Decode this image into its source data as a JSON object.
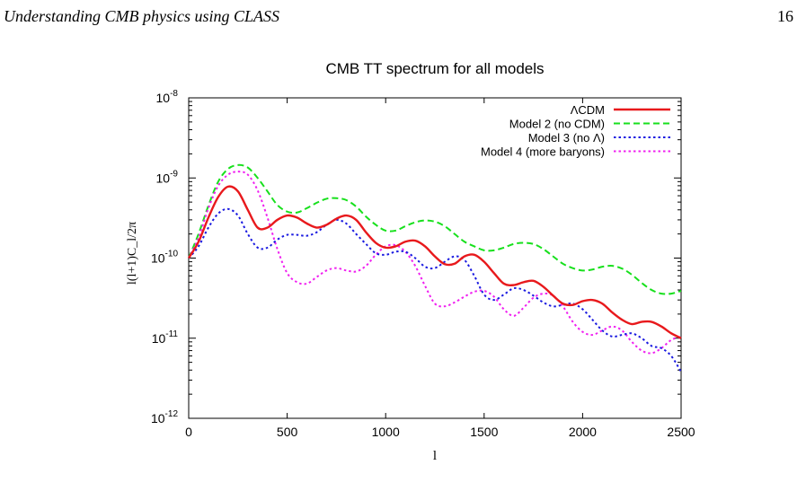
{
  "header": {
    "running_title": "Understanding CMB physics using CLASS",
    "page_number": "16"
  },
  "chart_data": {
    "type": "line",
    "title": "CMB TT spectrum for all models",
    "xlabel": "l",
    "ylabel": "l(l+1)C_l/2π",
    "xlim": [
      0,
      2500
    ],
    "ylim": [
      1e-12,
      1e-08
    ],
    "y_scale": "log",
    "grid": false,
    "legend_position": "top-right",
    "x_ticks": [
      "0",
      "500",
      "1000",
      "1500",
      "2000",
      "2500"
    ],
    "y_ticks": [
      {
        "base": "10",
        "exp": "-12",
        "value": 1e-12
      },
      {
        "base": "10",
        "exp": "-11",
        "value": 1e-11
      },
      {
        "base": "10",
        "exp": "-10",
        "value": 1e-10
      },
      {
        "base": "10",
        "exp": "-9",
        "value": 1e-09
      },
      {
        "base": "10",
        "exp": "-8",
        "value": 1e-08
      }
    ],
    "series": [
      {
        "name": "ΛCDM",
        "color": "#e8191c",
        "dash": "solid",
        "x": [
          0,
          50,
          100,
          150,
          200,
          250,
          300,
          350,
          400,
          450,
          500,
          550,
          600,
          650,
          700,
          750,
          800,
          850,
          900,
          950,
          1000,
          1050,
          1100,
          1150,
          1200,
          1250,
          1300,
          1350,
          1400,
          1450,
          1500,
          1550,
          1600,
          1650,
          1700,
          1750,
          1800,
          1850,
          1900,
          1950,
          2000,
          2050,
          2100,
          2150,
          2200,
          2250,
          2300,
          2350,
          2400,
          2450,
          2500
        ],
        "y": [
          1e-10,
          1.6e-10,
          3.2e-10,
          5.8e-10,
          7.8e-10,
          6.8e-10,
          4e-10,
          2.4e-10,
          2.4e-10,
          3e-10,
          3.4e-10,
          3.2e-10,
          2.7e-10,
          2.4e-10,
          2.6e-10,
          3.1e-10,
          3.4e-10,
          3e-10,
          2.1e-10,
          1.55e-10,
          1.35e-10,
          1.4e-10,
          1.6e-10,
          1.65e-10,
          1.4e-10,
          1.05e-10,
          8.4e-11,
          8.5e-11,
          1.05e-10,
          1.1e-10,
          9e-11,
          6.5e-11,
          4.8e-11,
          4.6e-11,
          5e-11,
          5.2e-11,
          4.4e-11,
          3.4e-11,
          2.7e-11,
          2.6e-11,
          2.9e-11,
          3e-11,
          2.7e-11,
          2.1e-11,
          1.7e-11,
          1.5e-11,
          1.6e-11,
          1.6e-11,
          1.4e-11,
          1.15e-11,
          1e-11
        ]
      },
      {
        "name": "Model 2 (no CDM)",
        "color": "#17e01c",
        "dash": "dashed",
        "x": [
          0,
          50,
          100,
          150,
          200,
          250,
          300,
          350,
          400,
          450,
          500,
          550,
          600,
          650,
          700,
          750,
          800,
          850,
          900,
          950,
          1000,
          1050,
          1100,
          1150,
          1200,
          1250,
          1300,
          1350,
          1400,
          1450,
          1500,
          1550,
          1600,
          1650,
          1700,
          1750,
          1800,
          1850,
          1900,
          1950,
          2000,
          2050,
          2100,
          2150,
          2200,
          2250,
          2300,
          2350,
          2400,
          2450,
          2500
        ],
        "y": [
          1e-10,
          2e-10,
          4.5e-10,
          9e-10,
          1.3e-09,
          1.45e-09,
          1.35e-09,
          1e-09,
          6.8e-10,
          4.6e-10,
          3.8e-10,
          3.7e-10,
          4.2e-10,
          4.9e-10,
          5.5e-10,
          5.6e-10,
          5.3e-10,
          4.4e-10,
          3.3e-10,
          2.6e-10,
          2.2e-10,
          2.2e-10,
          2.5e-10,
          2.8e-10,
          2.95e-10,
          2.85e-10,
          2.5e-10,
          2e-10,
          1.6e-10,
          1.4e-10,
          1.25e-10,
          1.25e-10,
          1.35e-10,
          1.5e-10,
          1.55e-10,
          1.5e-10,
          1.3e-10,
          1.05e-10,
          8.5e-11,
          7.5e-11,
          7e-11,
          7.2e-11,
          7.8e-11,
          8e-11,
          7.4e-11,
          6.2e-11,
          4.9e-11,
          4e-11,
          3.6e-11,
          3.6e-11,
          3.9e-11
        ]
      },
      {
        "name": "Model 3 (no Λ)",
        "color": "#1a1ae0",
        "dash": "dotted",
        "x": [
          0,
          50,
          100,
          150,
          200,
          250,
          300,
          350,
          400,
          450,
          500,
          550,
          600,
          650,
          700,
          750,
          800,
          850,
          900,
          950,
          1000,
          1050,
          1100,
          1150,
          1200,
          1250,
          1300,
          1350,
          1400,
          1450,
          1500,
          1550,
          1600,
          1650,
          1700,
          1750,
          1800,
          1850,
          1900,
          1950,
          2000,
          2050,
          2100,
          2150,
          2200,
          2250,
          2300,
          2350,
          2400,
          2450,
          2500
        ],
        "y": [
          1e-10,
          1.4e-10,
          2.4e-10,
          3.6e-10,
          4.1e-10,
          3.4e-10,
          2e-10,
          1.35e-10,
          1.35e-10,
          1.7e-10,
          1.95e-10,
          1.95e-10,
          1.9e-10,
          2.1e-10,
          2.6e-10,
          3e-10,
          2.7e-10,
          2e-10,
          1.5e-10,
          1.15e-10,
          1.1e-10,
          1.2e-10,
          1.2e-10,
          1e-10,
          7.8e-11,
          7.5e-11,
          9e-11,
          1.05e-10,
          9.5e-11,
          6e-11,
          3.5e-11,
          3e-11,
          3.5e-11,
          4.2e-11,
          4e-11,
          3.4e-11,
          2.8e-11,
          2.5e-11,
          2.6e-11,
          2.7e-11,
          2.3e-11,
          1.7e-11,
          1.25e-11,
          1.05e-11,
          1.1e-11,
          1.15e-11,
          1e-11,
          8e-12,
          7.5e-12,
          6e-12,
          3.8e-12
        ]
      },
      {
        "name": "Model 4 (more baryons)",
        "color": "#f020f0",
        "dash": "dotted",
        "x": [
          0,
          50,
          100,
          150,
          200,
          250,
          300,
          350,
          400,
          450,
          500,
          550,
          600,
          650,
          700,
          750,
          800,
          850,
          900,
          950,
          1000,
          1050,
          1100,
          1150,
          1200,
          1250,
          1300,
          1350,
          1400,
          1450,
          1500,
          1550,
          1600,
          1650,
          1700,
          1750,
          1800,
          1850,
          1900,
          1950,
          2000,
          2050,
          2100,
          2150,
          2200,
          2250,
          2300,
          2350,
          2400,
          2450,
          2500
        ],
        "y": [
          1e-10,
          1.8e-10,
          4.2e-10,
          8e-10,
          1.1e-09,
          1.2e-09,
          1.1e-09,
          7e-10,
          3.2e-10,
          1.3e-10,
          6.5e-11,
          5e-11,
          4.8e-11,
          5.8e-11,
          7e-11,
          7.5e-11,
          7e-11,
          6.8e-11,
          8e-11,
          1.1e-10,
          1.4e-10,
          1.45e-10,
          1.2e-10,
          8e-11,
          4.5e-11,
          2.7e-11,
          2.5e-11,
          2.8e-11,
          3.3e-11,
          3.8e-11,
          3.9e-11,
          3.3e-11,
          2.3e-11,
          1.9e-11,
          2.4e-11,
          3.2e-11,
          3.6e-11,
          3.4e-11,
          2.5e-11,
          1.6e-11,
          1.2e-11,
          1.1e-11,
          1.25e-11,
          1.4e-11,
          1.25e-11,
          9e-12,
          7e-12,
          6.5e-12,
          7.5e-12,
          9.5e-12,
          1.05e-11
        ]
      }
    ]
  }
}
